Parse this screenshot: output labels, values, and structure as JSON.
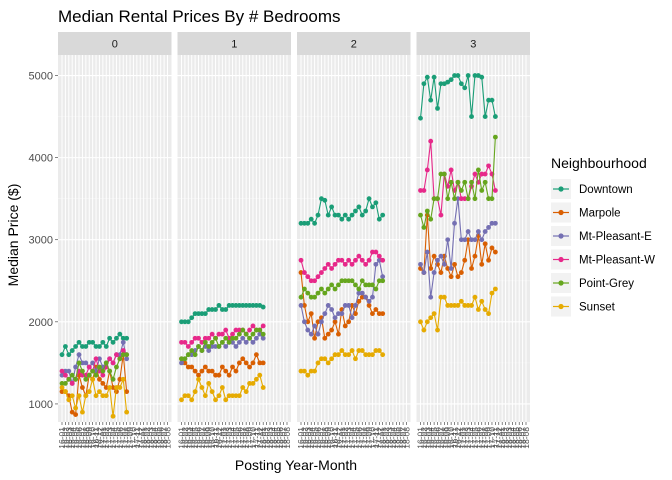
{
  "chart_data": {
    "type": "line",
    "title": "Median Rental Prices By # Bedrooms",
    "xlabel": "Posting Year-Month",
    "ylabel": "Median Price ($)",
    "ylim": [
      780,
      5250
    ],
    "yticks": [
      1000,
      2000,
      3000,
      4000,
      5000
    ],
    "grid": true,
    "legend_position": "right",
    "legend_title": "Neighbourhood",
    "facets": [
      "0",
      "1",
      "2",
      "3"
    ],
    "x": [
      "2016-01",
      "2016-02",
      "2016-03",
      "2016-04",
      "2016-05",
      "2016-06",
      "2016-07",
      "2016-08",
      "2016-09",
      "2016-10",
      "2016-11",
      "2016-12",
      "2017-01",
      "2017-02",
      "2017-03",
      "2017-04",
      "2017-05",
      "2017-06",
      "2017-07",
      "2017-08",
      "2017-09",
      "2017-10",
      "2017-11",
      "2017-12",
      "2018-01",
      "2018-02",
      "2018-03",
      "2018-04",
      "2018-05",
      "2018-06",
      "2018-07",
      "2018-08"
    ],
    "x_tick_labels": [
      "16-01",
      "16-02",
      "16-03",
      "16-04",
      "16-05",
      "16-06",
      "16-07",
      "16-08",
      "16-09",
      "16-10",
      "16-11",
      "16-12",
      "17-01",
      "17-02",
      "17-03",
      "17-04",
      "17-05",
      "17-06",
      "17-07",
      "17-08",
      "17-09",
      "17-10",
      "17-11",
      "17-12",
      "18-01",
      "18-02",
      "18-03",
      "18-04",
      "18-05",
      "18-06",
      "18-07",
      "18-08"
    ],
    "series": [
      {
        "name": "Downtown",
        "color": "#1b9e77",
        "facets": {
          "0": [
            1600,
            1700,
            1600,
            1650,
            1700,
            1750,
            1700,
            1700,
            1750,
            1750,
            1700,
            1700,
            1750,
            1700,
            1800,
            1750,
            1800,
            1850,
            1800,
            1800
          ],
          "1": [
            2000,
            2000,
            2000,
            2050,
            2100,
            2100,
            2100,
            2100,
            2150,
            2150,
            2150,
            2200,
            2150,
            2150,
            2200,
            2200,
            2200,
            2200,
            2200,
            2200,
            2200,
            2200,
            2200,
            2200,
            2180
          ],
          "2": [
            3200,
            3200,
            3200,
            3250,
            3200,
            3300,
            3500,
            3480,
            3300,
            3400,
            3300,
            3300,
            3250,
            3300,
            3250,
            3300,
            3350,
            3400,
            3300,
            3350,
            3500,
            3400,
            3450,
            3250,
            3300
          ],
          "3": [
            4480,
            4900,
            4980,
            4700,
            4980,
            4600,
            4900,
            4900,
            4920,
            4950,
            5000,
            5000,
            4900,
            4850,
            5000,
            4500,
            5000,
            5000,
            4980,
            4500,
            4700,
            4700,
            4500
          ]
        }
      },
      {
        "name": "Marpole",
        "color": "#d95f02",
        "facets": {
          "0": [
            1150,
            1150,
            1100,
            900,
            870,
            1350,
            1200,
            1100,
            1350,
            1300,
            1450,
            1300,
            1250,
            1200,
            1400,
            1200,
            1150,
            1300,
            1600,
            1150
          ],
          "1": [
            1550,
            1500,
            1450,
            1450,
            1400,
            1350,
            1400,
            1450,
            1400,
            1400,
            1350,
            1350,
            1450,
            1400,
            1350,
            1450,
            1400,
            1500,
            1550,
            1500,
            1450,
            1500,
            1600,
            1500,
            1500
          ],
          "2": [
            2600,
            2200,
            2000,
            2100,
            1800,
            2000,
            2050,
            1800,
            1850,
            1900,
            2000,
            1850,
            2150,
            1950,
            2000,
            2200,
            2100,
            2250,
            2300,
            2300,
            2200,
            2100,
            2150,
            2100,
            2100
          ],
          "3": [
            2650,
            2600,
            3300,
            2650,
            2800,
            2700,
            2600,
            2800,
            2650,
            2550,
            2700,
            2550,
            2600,
            2750,
            3000,
            2650,
            2800,
            3050,
            2700,
            2950,
            2750,
            2900,
            2850
          ]
        }
      },
      {
        "name": "Mt-Pleasant-E",
        "color": "#7570b3",
        "facets": {
          "0": [
            1350,
            1400,
            1400,
            1250,
            1450,
            1600,
            1500,
            1500,
            1450,
            1500,
            1400,
            1550,
            1450,
            1500,
            1550,
            1500,
            1600,
            1600,
            1750,
            1550
          ],
          "1": [
            1500,
            1550,
            1600,
            1600,
            1650,
            1700,
            1650,
            1700,
            1650,
            1700,
            1700,
            1700,
            1750,
            1700,
            1750,
            1750,
            1700,
            1750,
            1800,
            1750,
            1800,
            1750,
            1800,
            1850,
            1800
          ],
          "2": [
            2200,
            2000,
            1900,
            1850,
            1950,
            1850,
            2000,
            2100,
            2200,
            2150,
            2050,
            2100,
            2100,
            2200,
            2200,
            2050,
            2200,
            2350,
            2350,
            2300,
            2250,
            2300,
            2700,
            2750,
            2550
          ],
          "3": [
            2700,
            2600,
            2850,
            2300,
            2600,
            2750,
            2800,
            2700,
            3000,
            2650,
            3200,
            3500,
            3000,
            3000,
            3100,
            3000,
            3000,
            3100,
            3000,
            3100,
            3150,
            3200,
            3200
          ]
        }
      },
      {
        "name": "Mt-Pleasant-W",
        "color": "#e7298a",
        "facets": {
          "0": [
            1400,
            1350,
            1300,
            1250,
            1300,
            1400,
            1350,
            1350,
            1450,
            1400,
            1550,
            1400,
            1350,
            1450,
            1550,
            1500,
            1600,
            1550,
            1650,
            1600
          ],
          "1": [
            1750,
            1750,
            1700,
            1750,
            1800,
            1800,
            1750,
            1800,
            1800,
            1850,
            1800,
            1850,
            1850,
            1900,
            1800,
            1850,
            1900,
            1900,
            1900,
            1850,
            1900,
            1950,
            1900,
            1900,
            1950
          ],
          "2": [
            2750,
            2600,
            2550,
            2500,
            2500,
            2550,
            2600,
            2650,
            2700,
            2650,
            2700,
            2750,
            2750,
            2700,
            2750,
            2700,
            2750,
            2800,
            2750,
            2700,
            2750,
            2850,
            2850,
            2800,
            2750
          ],
          "3": [
            3600,
            3600,
            3850,
            4200,
            3500,
            3500,
            3300,
            3800,
            3650,
            3850,
            3600,
            3700,
            3500,
            3500,
            3500,
            3650,
            3800,
            3700,
            3800,
            3800,
            3900,
            3800,
            3600
          ]
        }
      },
      {
        "name": "Point-Grey",
        "color": "#66a61e",
        "facets": {
          "0": [
            1250,
            1250,
            1300,
            1350,
            1300,
            1500,
            1400,
            1300,
            1350,
            1400,
            1350,
            1450,
            1400,
            1500,
            1400,
            1300,
            1450,
            1550,
            1600,
            1600
          ],
          "1": [
            1550,
            1550,
            1600,
            1650,
            1600,
            1700,
            1650,
            1750,
            1700,
            1750,
            1800,
            1700,
            1750,
            1800,
            1750,
            1800,
            1800,
            1850,
            1900,
            1850,
            1800,
            1850,
            1900,
            1900,
            1850
          ],
          "2": [
            2300,
            2400,
            2350,
            2300,
            2300,
            2350,
            2400,
            2350,
            2400,
            2450,
            2400,
            2450,
            2500,
            2500,
            2500,
            2500,
            2450,
            2400,
            2500,
            2450,
            2450,
            2450,
            2400,
            2500,
            2500
          ],
          "3": [
            3300,
            3150,
            3350,
            3250,
            3500,
            3500,
            3800,
            3800,
            3500,
            3700,
            3500,
            3700,
            3600,
            3700,
            3500,
            3700,
            3500,
            3850,
            3600,
            3700,
            3500,
            3500,
            4250
          ]
        }
      },
      {
        "name": "Sunset",
        "color": "#e6ab02",
        "facets": {
          "0": [
            1200,
            1150,
            1050,
            1100,
            950,
            1100,
            900,
            1100,
            1150,
            1300,
            1100,
            1150,
            1100,
            1100,
            1200,
            850,
            1200,
            1200,
            1300,
            900
          ],
          "1": [
            1050,
            1100,
            1100,
            1050,
            1150,
            1300,
            1200,
            1100,
            1250,
            1150,
            1050,
            1100,
            1200,
            1050,
            1100,
            1100,
            1100,
            1100,
            1200,
            1150,
            1250,
            1250,
            1300,
            1350,
            1200
          ],
          "2": [
            1400,
            1400,
            1350,
            1400,
            1400,
            1500,
            1550,
            1550,
            1500,
            1550,
            1600,
            1600,
            1650,
            1600,
            1600,
            1650,
            1550,
            1650,
            1650,
            1600,
            1600,
            1600,
            1650,
            1650,
            1600
          ],
          "3": [
            2000,
            1900,
            2000,
            2050,
            2100,
            1900,
            2300,
            2300,
            2200,
            2200,
            2200,
            2200,
            2250,
            2200,
            2200,
            2200,
            2300,
            2150,
            2250,
            2150,
            2100,
            2350,
            2400
          ]
        }
      }
    ]
  }
}
